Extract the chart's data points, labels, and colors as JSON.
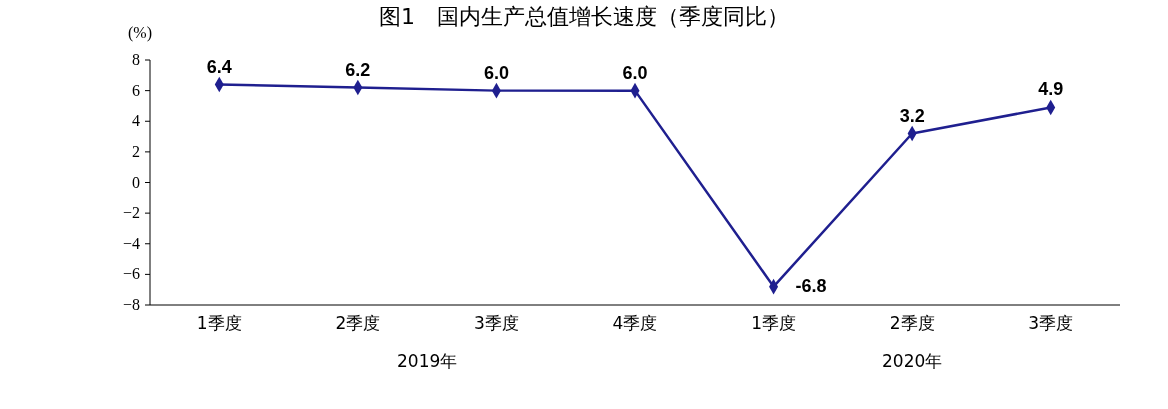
{
  "chart_data": {
    "type": "line",
    "title": "图1　国内生产总值增长速度（季度同比）",
    "ylabel": "(%)",
    "categories": [
      "1季度",
      "2季度",
      "3季度",
      "4季度",
      "1季度",
      "2季度",
      "3季度"
    ],
    "series": [
      {
        "color": "#1f1f8f",
        "values": [
          6.4,
          6.2,
          6.0,
          6.0,
          -6.8,
          3.2,
          4.9
        ],
        "value_labels": [
          "6.4",
          "6.2",
          "6.0",
          "6.0",
          "-6.8",
          "3.2",
          "4.9"
        ]
      }
    ],
    "ylim": [
      -8,
      8
    ],
    "yticks": [
      -8,
      -6,
      -4,
      -2,
      0,
      2,
      4,
      6,
      8
    ],
    "marker": "diamond",
    "annotations": [
      "2019年",
      "2020年"
    ]
  }
}
